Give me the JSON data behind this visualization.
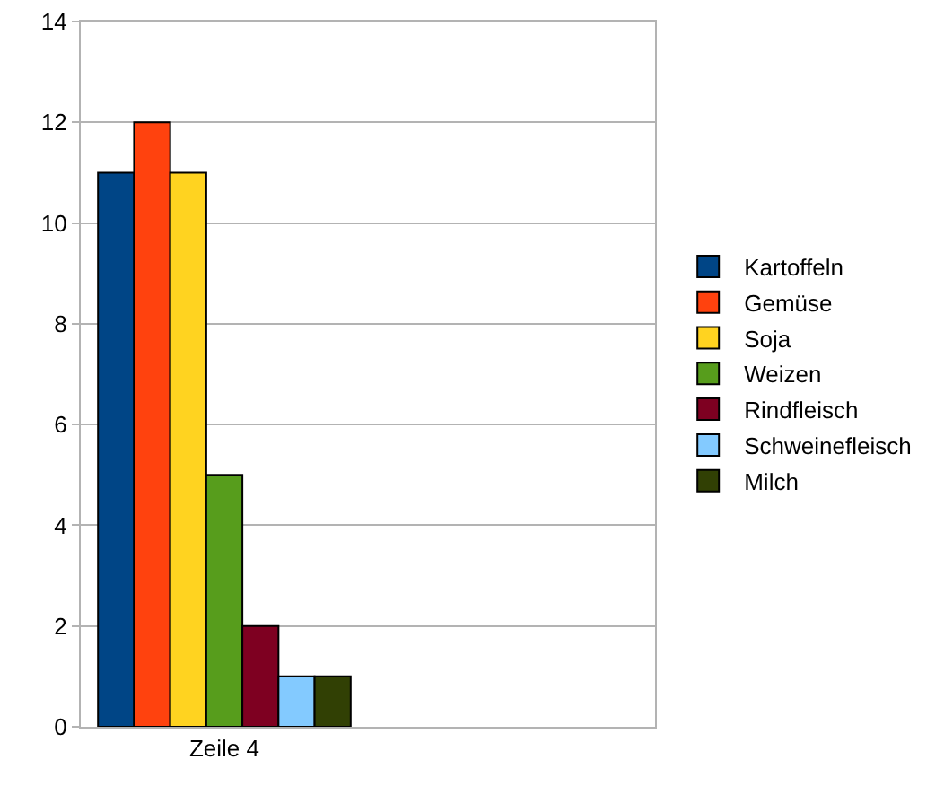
{
  "chart_data": {
    "type": "bar",
    "categories": [
      "Zeile 4",
      null
    ],
    "series": [
      {
        "name": "Kartoffeln",
        "color": "#004586",
        "values": [
          11,
          null
        ]
      },
      {
        "name": "Gemüse",
        "color": "#ff420e",
        "values": [
          12,
          null
        ]
      },
      {
        "name": "Soja",
        "color": "#ffd320",
        "values": [
          11,
          null
        ]
      },
      {
        "name": "Weizen",
        "color": "#579d1c",
        "values": [
          5,
          null
        ]
      },
      {
        "name": "Rindfleisch",
        "color": "#7e0021",
        "values": [
          2,
          null
        ]
      },
      {
        "name": "Schweinefleisch",
        "color": "#83caff",
        "values": [
          1,
          null
        ]
      },
      {
        "name": "Milch",
        "color": "#314004",
        "values": [
          1,
          null
        ]
      }
    ],
    "ylim": [
      0,
      14
    ],
    "yticks": [
      0,
      2,
      4,
      6,
      8,
      10,
      12,
      14
    ],
    "grid": "y",
    "legend": "right"
  }
}
